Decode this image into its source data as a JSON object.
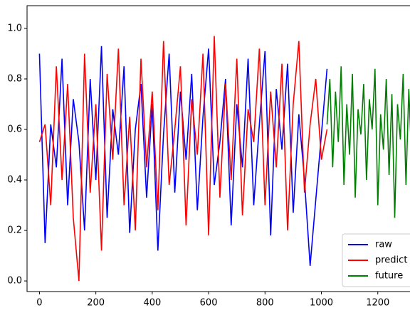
{
  "chart_data": {
    "type": "line",
    "xlim": [
      -44,
      1390
    ],
    "ylim": [
      -0.042,
      1.09
    ],
    "xticks": [
      0,
      200,
      400,
      600,
      800,
      1000,
      1200
    ],
    "yticks": [
      {
        "value": 0,
        "label": "0.0"
      },
      0.2,
      0.4,
      0.6,
      0.8,
      {
        "value": 1,
        "label": "1.0"
      }
    ],
    "legend": "lower right",
    "series": [
      {
        "name": "raw",
        "color": "#0000ff",
        "x": [
          0,
          20,
          40,
          60,
          80,
          100,
          120,
          140,
          160,
          180,
          200,
          220,
          240,
          260,
          280,
          300,
          320,
          340,
          360,
          380,
          400,
          420,
          440,
          460,
          480,
          500,
          520,
          540,
          560,
          580,
          600,
          620,
          640,
          660,
          680,
          700,
          720,
          740,
          760,
          780,
          800,
          820,
          840,
          860,
          880,
          900,
          920,
          940,
          960,
          980,
          1000,
          1020
        ],
        "values": [
          0.9,
          0.15,
          0.62,
          0.45,
          0.88,
          0.3,
          0.72,
          0.55,
          0.2,
          0.8,
          0.4,
          0.93,
          0.25,
          0.68,
          0.5,
          0.85,
          0.19,
          0.6,
          0.78,
          0.33,
          0.7,
          0.12,
          0.58,
          0.9,
          0.35,
          0.75,
          0.48,
          0.82,
          0.28,
          0.65,
          0.92,
          0.38,
          0.55,
          0.8,
          0.22,
          0.7,
          0.45,
          0.88,
          0.3,
          0.62,
          0.91,
          0.18,
          0.76,
          0.52,
          0.86,
          0.27,
          0.66,
          0.4,
          0.06,
          0.32,
          0.58,
          0.84
        ]
      },
      {
        "name": "predict",
        "color": "#ff0000",
        "x": [
          0,
          20,
          40,
          60,
          80,
          100,
          120,
          140,
          160,
          180,
          200,
          220,
          240,
          260,
          280,
          300,
          320,
          340,
          360,
          380,
          400,
          420,
          440,
          460,
          480,
          500,
          520,
          540,
          560,
          580,
          600,
          620,
          640,
          660,
          680,
          700,
          720,
          740,
          760,
          780,
          800,
          820,
          840,
          860,
          880,
          900,
          920,
          940,
          960,
          980,
          1000,
          1020
        ],
        "values": [
          0.55,
          0.62,
          0.3,
          0.85,
          0.4,
          0.78,
          0.25,
          0.0,
          0.9,
          0.35,
          0.7,
          0.12,
          0.82,
          0.48,
          0.92,
          0.3,
          0.65,
          0.2,
          0.88,
          0.45,
          0.75,
          0.28,
          0.95,
          0.38,
          0.6,
          0.85,
          0.22,
          0.72,
          0.5,
          0.9,
          0.18,
          0.97,
          0.33,
          0.78,
          0.4,
          0.88,
          0.26,
          0.68,
          0.55,
          0.92,
          0.3,
          0.75,
          0.45,
          0.86,
          0.2,
          0.7,
          0.95,
          0.35,
          0.62,
          0.8,
          0.48,
          0.6
        ]
      },
      {
        "name": "future",
        "color": "#008000",
        "x": [
          1020,
          1030,
          1040,
          1050,
          1060,
          1070,
          1080,
          1090,
          1100,
          1110,
          1120,
          1130,
          1140,
          1150,
          1160,
          1170,
          1180,
          1190,
          1200,
          1210,
          1220,
          1230,
          1240,
          1250,
          1260,
          1270,
          1280,
          1290,
          1300,
          1310,
          1320
        ],
        "values": [
          0.62,
          0.8,
          0.45,
          0.75,
          0.55,
          0.85,
          0.38,
          0.7,
          0.5,
          0.82,
          0.33,
          0.68,
          0.58,
          0.78,
          0.4,
          0.72,
          0.6,
          0.84,
          0.3,
          0.66,
          0.52,
          0.8,
          0.42,
          0.74,
          0.25,
          0.7,
          0.56,
          0.82,
          0.38,
          0.76,
          0.48
        ]
      }
    ]
  }
}
